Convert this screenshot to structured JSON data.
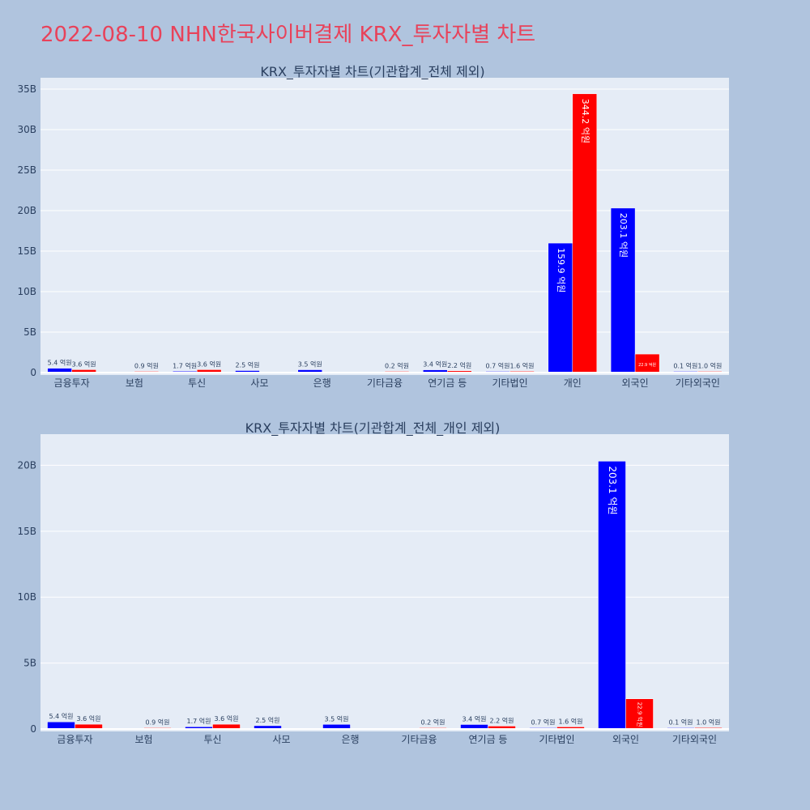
{
  "page": {
    "title": "2022-08-10 NHN한국사이버결제 KRX_투자자별 차트"
  },
  "colors": {
    "background": "#b0c4de",
    "plot_background": "#e5ecf6",
    "title": "#e8425a",
    "series_buy": "#0000ff",
    "series_sell": "#ff0000"
  },
  "chart_data": [
    {
      "type": "bar",
      "title": "KRX_투자자별 차트(기관합계_전체 제외)",
      "categories": [
        "금융투자",
        "보험",
        "투신",
        "사모",
        "은행",
        "기타금융",
        "연기금 등",
        "기타법인",
        "개인",
        "외국인",
        "기타외국인"
      ],
      "series": [
        {
          "color": "#0000ff",
          "values": [
            540000000,
            0,
            170000000,
            250000000,
            350000000,
            0,
            340000000,
            70000000,
            15990000000,
            20310000000,
            10000000
          ],
          "labels": [
            "5.4 억원",
            "",
            "1.7 억원",
            "2.5 억원",
            "3.5 억원",
            "",
            "3.4 억원",
            "0.7 억원",
            "159.9 억원",
            "203.1 억원",
            "0.1 억원"
          ]
        },
        {
          "color": "#ff0000",
          "values": [
            360000000,
            90000000,
            360000000,
            0,
            0,
            20000000,
            220000000,
            160000000,
            34420000000,
            2290000000,
            100000000
          ],
          "labels": [
            "3.6 억원",
            "0.9 억원",
            "3.6 억원",
            "",
            "",
            "0.2 억원",
            "2.2 억원",
            "1.6 억원",
            "344.2 억원",
            "22.9 억원",
            "1.0 억원"
          ]
        }
      ],
      "ylim": [
        0,
        35000000000
      ],
      "yticks": [
        0,
        5000000000,
        10000000000,
        15000000000,
        20000000000,
        25000000000,
        30000000000,
        35000000000
      ],
      "ytick_labels": [
        "0",
        "5B",
        "10B",
        "15B",
        "20B",
        "25B",
        "30B",
        "35B"
      ],
      "grid": true,
      "legend": "none"
    },
    {
      "type": "bar",
      "title": "KRX_투자자별 차트(기관합계_전체_개인 제외)",
      "categories": [
        "금융투자",
        "보험",
        "투신",
        "사모",
        "은행",
        "기타금융",
        "연기금 등",
        "기타법인",
        "외국인",
        "기타외국인"
      ],
      "series": [
        {
          "color": "#0000ff",
          "values": [
            540000000,
            0,
            170000000,
            250000000,
            350000000,
            0,
            340000000,
            70000000,
            20310000000,
            10000000
          ],
          "labels": [
            "5.4 억원",
            "",
            "1.7 억원",
            "2.5 억원",
            "3.5 억원",
            "",
            "3.4 억원",
            "0.7 억원",
            "203.1 억원",
            "0.1 억원"
          ]
        },
        {
          "color": "#ff0000",
          "values": [
            360000000,
            90000000,
            360000000,
            0,
            0,
            20000000,
            220000000,
            160000000,
            2290000000,
            100000000
          ],
          "labels": [
            "3.6 억원",
            "0.9 억원",
            "3.6 억원",
            "",
            "",
            "0.2 억원",
            "2.2 억원",
            "1.6 억원",
            "22.9 억원",
            "1.0 억원"
          ]
        }
      ],
      "ylim": [
        0,
        21500000000
      ],
      "yticks": [
        0,
        5000000000,
        10000000000,
        15000000000,
        20000000000
      ],
      "ytick_labels": [
        "0",
        "5B",
        "10B",
        "15B",
        "20B"
      ],
      "grid": true,
      "legend": "none"
    }
  ]
}
